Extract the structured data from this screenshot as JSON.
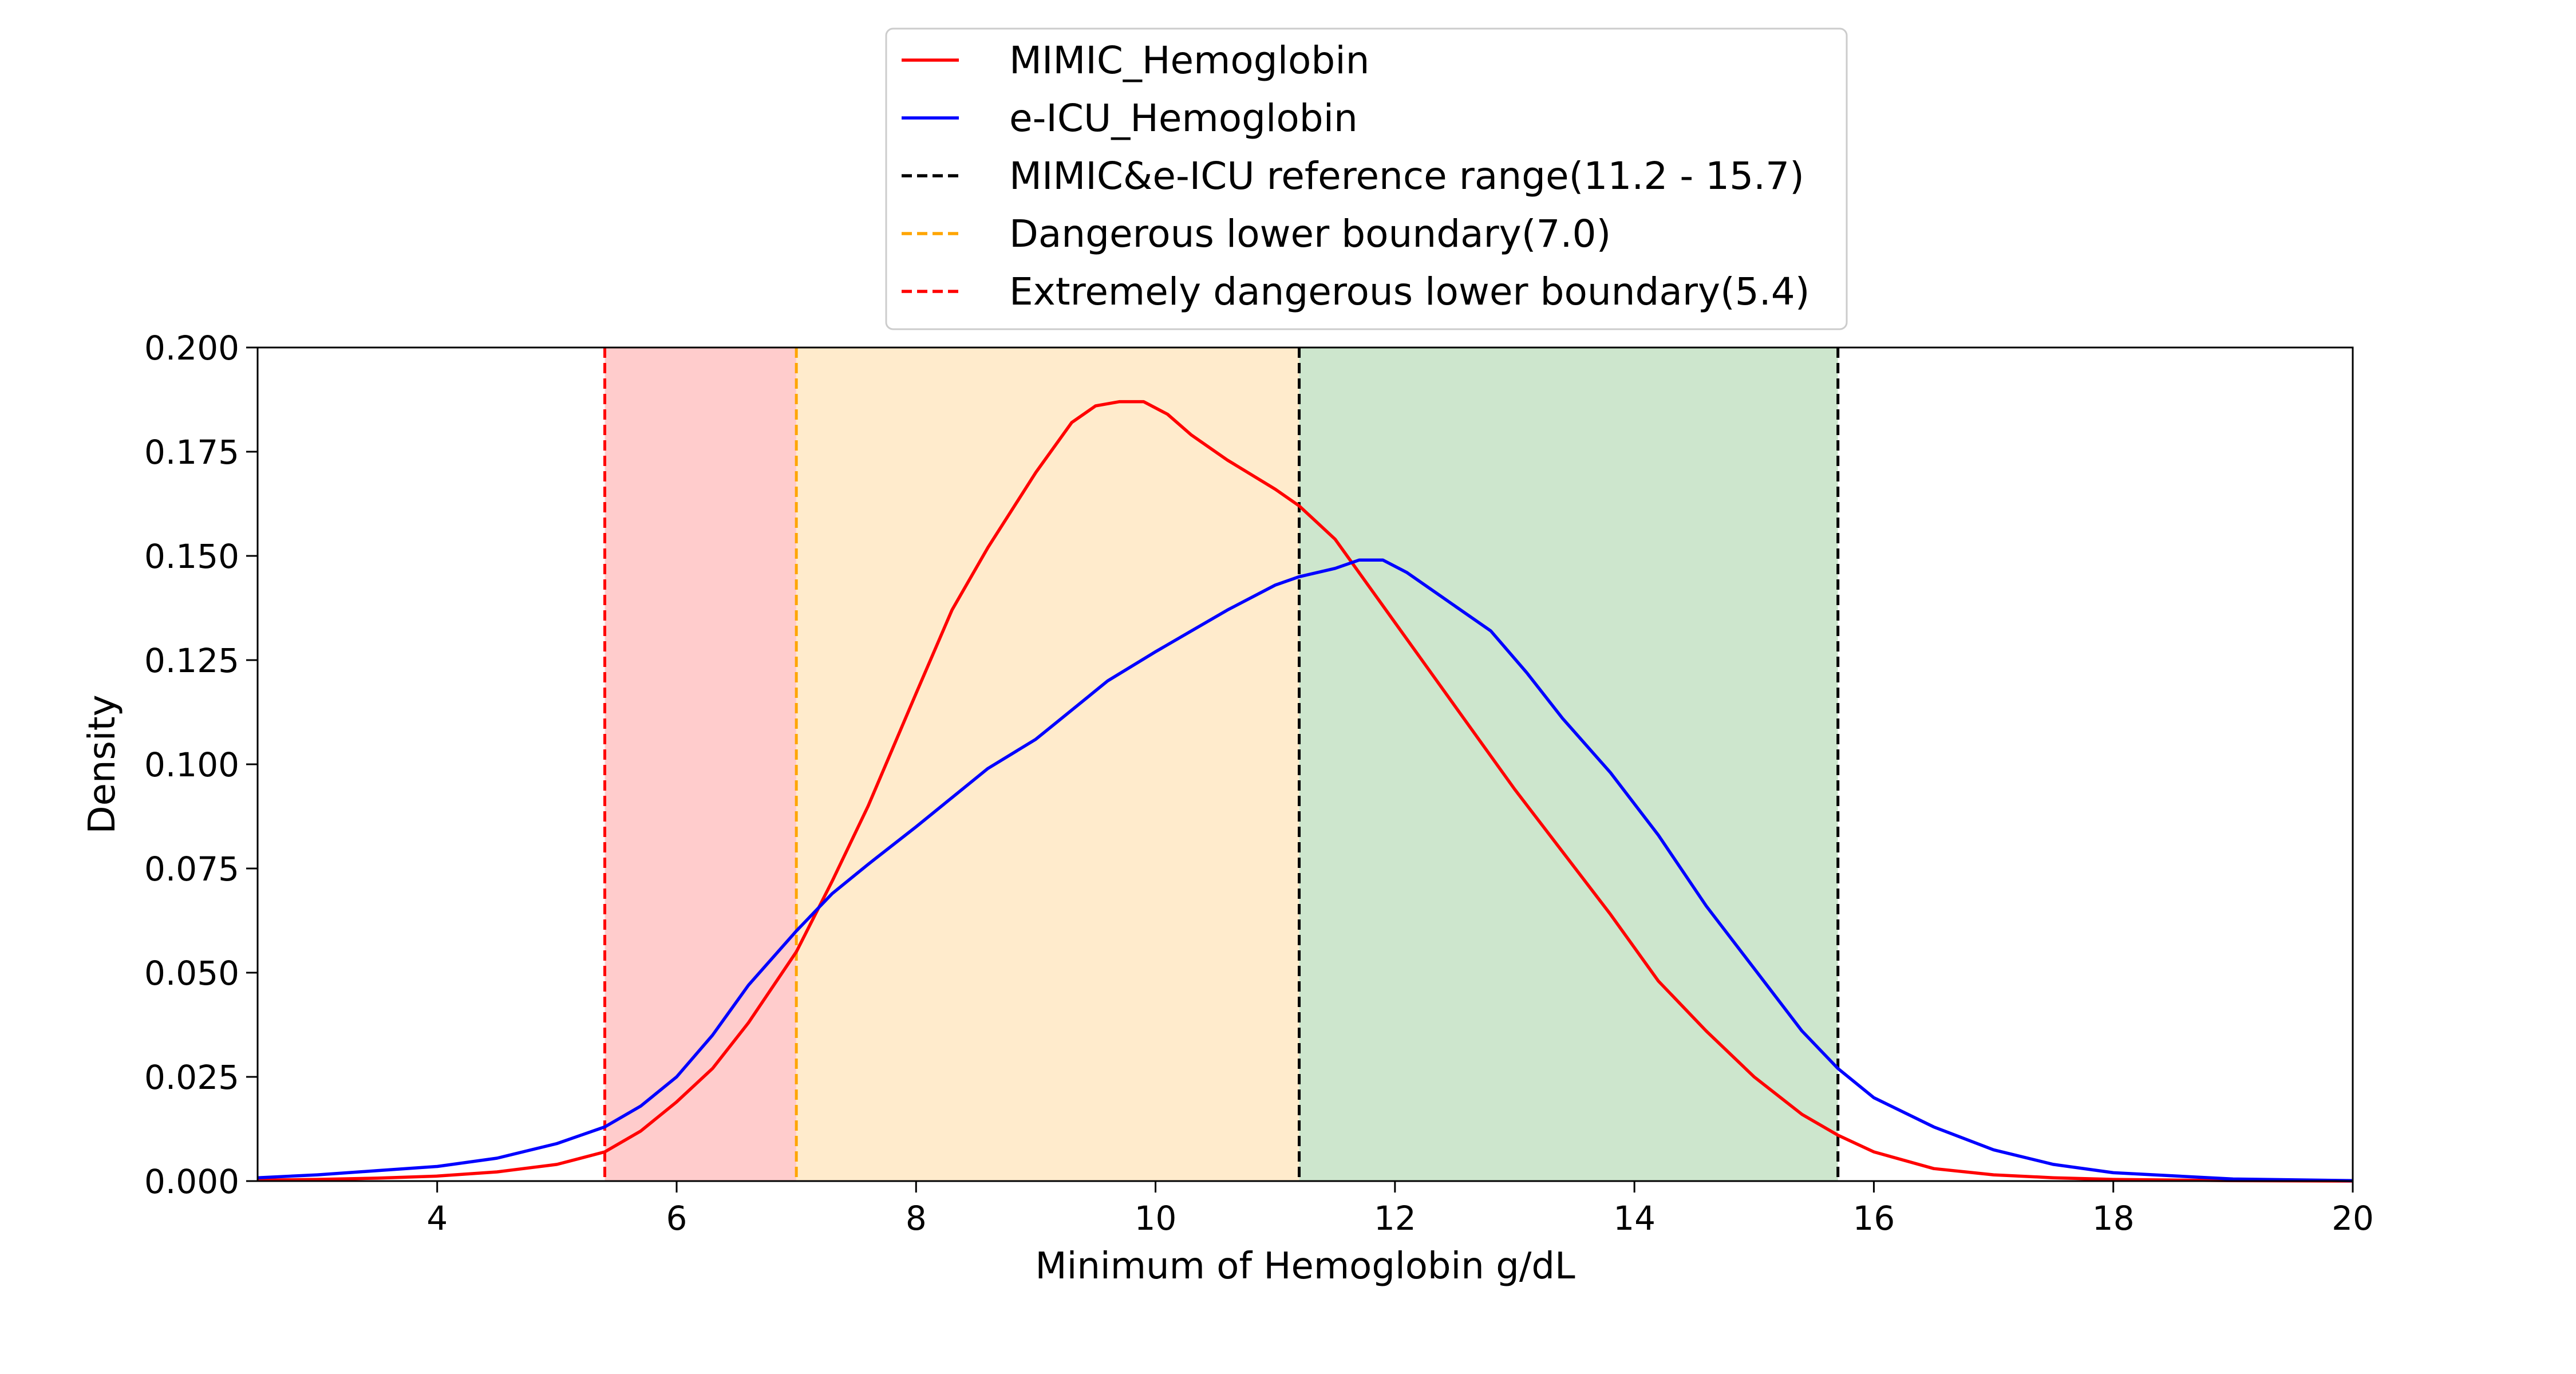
{
  "chart_data": {
    "type": "line",
    "xlabel": "Minimum of Hemoglobin g/dL",
    "ylabel": "Density",
    "xlim": [
      2.5,
      20
    ],
    "ylim": [
      0,
      0.2
    ],
    "x_ticks": [
      4,
      6,
      8,
      10,
      12,
      14,
      16,
      18,
      20
    ],
    "y_ticks": [
      0.0,
      0.025,
      0.05,
      0.075,
      0.1,
      0.125,
      0.15,
      0.175,
      0.2
    ],
    "grid": false,
    "legend_position": "top-center",
    "shaded_regions": [
      {
        "from": 5.4,
        "to": 7.0,
        "color": "#ffcccc"
      },
      {
        "from": 7.0,
        "to": 11.2,
        "color": "#ffebcc"
      },
      {
        "from": 11.2,
        "to": 15.7,
        "color": "#cde6cd"
      }
    ],
    "reference_lines": [
      {
        "name": "MIMIC&e-ICU reference range(11.2 - 15.7)",
        "x": [
          11.2,
          15.7
        ],
        "color": "#000000",
        "dashed": true
      },
      {
        "name": "Dangerous lower boundary(7.0)",
        "x": [
          7.0
        ],
        "color": "#ffa500",
        "dashed": true
      },
      {
        "name": "Extremely dangerous lower boundary(5.4)",
        "x": [
          5.4
        ],
        "color": "#ff0000",
        "dashed": true
      }
    ],
    "series": [
      {
        "name": "MIMIC_Hemoglobin",
        "color": "#ff0000",
        "x": [
          2.5,
          3.0,
          3.5,
          4.0,
          4.5,
          5.0,
          5.4,
          5.7,
          6.0,
          6.3,
          6.6,
          7.0,
          7.3,
          7.6,
          8.0,
          8.3,
          8.6,
          9.0,
          9.3,
          9.5,
          9.7,
          9.9,
          10.1,
          10.3,
          10.6,
          11.0,
          11.2,
          11.5,
          11.8,
          12.2,
          12.6,
          13.0,
          13.4,
          13.8,
          14.2,
          14.6,
          15.0,
          15.4,
          15.7,
          16.0,
          16.5,
          17.0,
          17.5,
          18.0,
          19.0,
          20.0
        ],
        "values": [
          0.0002,
          0.0004,
          0.0007,
          0.0012,
          0.0022,
          0.004,
          0.007,
          0.012,
          0.019,
          0.027,
          0.038,
          0.055,
          0.072,
          0.09,
          0.117,
          0.137,
          0.152,
          0.17,
          0.182,
          0.186,
          0.187,
          0.187,
          0.184,
          0.179,
          0.173,
          0.166,
          0.162,
          0.154,
          0.142,
          0.126,
          0.11,
          0.094,
          0.079,
          0.064,
          0.048,
          0.036,
          0.025,
          0.016,
          0.011,
          0.007,
          0.003,
          0.0015,
          0.0008,
          0.0004,
          0.0001,
          0.0
        ]
      },
      {
        "name": "e-ICU_Hemoglobin",
        "color": "#0000ff",
        "x": [
          2.5,
          3.0,
          3.5,
          4.0,
          4.5,
          5.0,
          5.4,
          5.7,
          6.0,
          6.3,
          6.6,
          7.0,
          7.3,
          7.6,
          8.0,
          8.3,
          8.6,
          9.0,
          9.3,
          9.6,
          10.0,
          10.3,
          10.6,
          11.0,
          11.2,
          11.5,
          11.7,
          11.9,
          12.1,
          12.4,
          12.8,
          13.1,
          13.4,
          13.8,
          14.2,
          14.6,
          15.0,
          15.4,
          15.7,
          16.0,
          16.5,
          17.0,
          17.5,
          18.0,
          19.0,
          20.0
        ],
        "values": [
          0.0008,
          0.0015,
          0.0025,
          0.0035,
          0.0055,
          0.009,
          0.013,
          0.018,
          0.025,
          0.035,
          0.047,
          0.06,
          0.069,
          0.076,
          0.085,
          0.092,
          0.099,
          0.106,
          0.113,
          0.12,
          0.127,
          0.132,
          0.137,
          0.143,
          0.145,
          0.147,
          0.149,
          0.149,
          0.146,
          0.14,
          0.132,
          0.122,
          0.111,
          0.098,
          0.083,
          0.066,
          0.051,
          0.036,
          0.027,
          0.02,
          0.013,
          0.0075,
          0.004,
          0.002,
          0.0005,
          0.0001
        ]
      }
    ],
    "legend_entries": [
      {
        "label": "MIMIC_Hemoglobin",
        "color": "#ff0000",
        "dashed": false
      },
      {
        "label": "e-ICU_Hemoglobin",
        "color": "#0000ff",
        "dashed": false
      },
      {
        "label": "MIMIC&e-ICU reference range(11.2 - 15.7)",
        "color": "#000000",
        "dashed": true
      },
      {
        "label": "Dangerous lower boundary(7.0)",
        "color": "#ffa500",
        "dashed": true
      },
      {
        "label": "Extremely dangerous lower boundary(5.4)",
        "color": "#ff0000",
        "dashed": true
      }
    ]
  }
}
